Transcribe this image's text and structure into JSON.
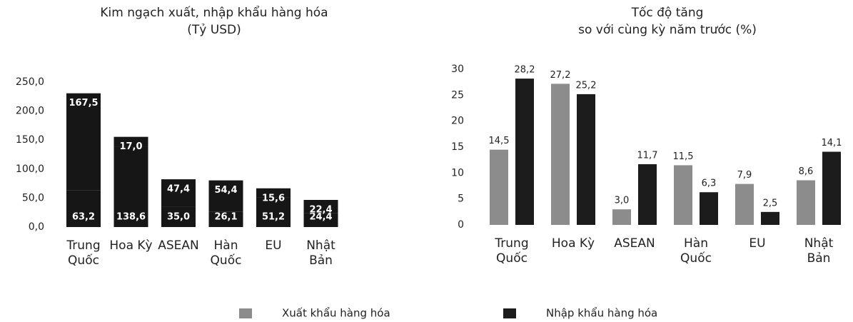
{
  "chart_data": [
    {
      "type": "stacked_bar",
      "title": "Kim ngạch xuất, nhập khẩu hàng hóa",
      "subtitle": "(Tỷ USD)",
      "categories": [
        [
          "Trung",
          "Quốc"
        ],
        [
          "Hoa Kỳ"
        ],
        [
          "ASEAN"
        ],
        [
          "Hàn",
          "Quốc"
        ],
        [
          "EU"
        ],
        [
          "Nhật",
          "Bản"
        ]
      ],
      "series": [
        {
          "color": "#161616",
          "values": [
            63.2,
            138.6,
            35.0,
            26.1,
            51.2,
            24.4
          ],
          "value_labels": [
            "63,2",
            "138,6",
            "35,0",
            "26,1",
            "51,2",
            "24,4"
          ]
        },
        {
          "color": "#161616",
          "values": [
            167.5,
            17.0,
            47.4,
            54.4,
            15.6,
            22.4
          ],
          "value_labels": [
            "167,5",
            "17,0",
            "47,4",
            "54,4",
            "15,6",
            "22,4"
          ]
        }
      ],
      "ylim": [
        0,
        250
      ],
      "yticks": [
        {
          "value": 0,
          "label": "0,0"
        },
        {
          "value": 50,
          "label": "50,0"
        },
        {
          "value": 100,
          "label": "100,0"
        },
        {
          "value": 150,
          "label": "150,0"
        },
        {
          "value": 200,
          "label": "200,0"
        },
        {
          "value": 250,
          "label": "250,0"
        }
      ]
    },
    {
      "type": "bar",
      "title": "Tốc độ tăng",
      "subtitle": "so với cùng kỳ năm trước (%)",
      "categories": [
        [
          "Trung",
          "Quốc"
        ],
        [
          "Hoa Kỳ"
        ],
        [
          "ASEAN"
        ],
        [
          "Hàn",
          "Quốc"
        ],
        [
          "EU"
        ],
        [
          "Nhật",
          "Bản"
        ]
      ],
      "series": [
        {
          "name": "Xuất khẩu hàng hóa",
          "color": "#8c8c8c",
          "values": [
            14.5,
            27.2,
            3.0,
            11.5,
            7.9,
            8.6
          ],
          "value_labels": [
            "14,5",
            "27,2",
            "3,0",
            "11,5",
            "7,9",
            "8,6"
          ]
        },
        {
          "name": "Nhập khẩu hàng hóa",
          "color": "#1c1c1c",
          "values": [
            28.2,
            25.2,
            11.7,
            6.3,
            2.5,
            14.1
          ],
          "value_labels": [
            "28,2",
            "25,2",
            "11,7",
            "6,3",
            "2,5",
            "14,1"
          ]
        }
      ],
      "ylim": [
        0,
        30
      ],
      "yticks": [
        0,
        5,
        10,
        15,
        20,
        25,
        30
      ],
      "legend": "bottom"
    }
  ]
}
